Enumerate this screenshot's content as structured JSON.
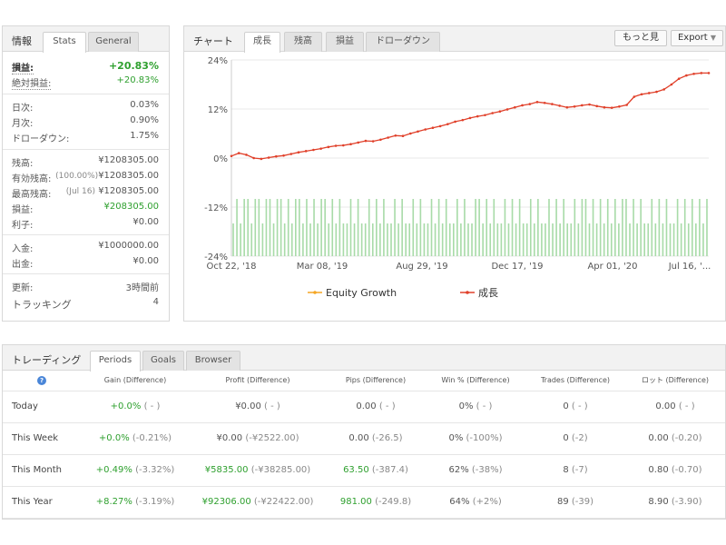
{
  "stats_panel": {
    "title": "情報",
    "tabs": [
      "Stats",
      "General"
    ],
    "gain_label": "損益:",
    "gain_value": "+20.83%",
    "abs_gain_label": "絶対損益:",
    "abs_gain_value": "+20.83%",
    "daily_label": "日次:",
    "daily_value": "0.03%",
    "monthly_label": "月次:",
    "monthly_value": "0.90%",
    "drawdown_label": "ドローダウン:",
    "drawdown_value": "1.75%",
    "balance_label": "残高:",
    "balance_value": "¥1208305.00",
    "equity_label": "有効残高:",
    "equity_note": "(100.00%)",
    "equity_value": "¥1208305.00",
    "highest_label": "最高残高:",
    "highest_note": "(Jul 16)",
    "highest_value": "¥1208305.00",
    "profit_label": "損益:",
    "profit_value": "¥208305.00",
    "interest_label": "利子:",
    "interest_value": "¥0.00",
    "deposits_label": "入金:",
    "deposits_value": "¥1000000.00",
    "withdrawals_label": "出金:",
    "withdrawals_value": "¥0.00",
    "updated_label": "更新:",
    "updated_value": "3時間前",
    "tracking_label": "トラッキング",
    "tracking_value": "4"
  },
  "chart_panel": {
    "title": "チャート",
    "tabs": [
      "成長",
      "残高",
      "損益",
      "ドローダウン"
    ],
    "more_button": "もっと見",
    "export_button": "Export",
    "export_arrow": "▼"
  },
  "chart_data": {
    "type": "line",
    "y_ticks": [
      "24%",
      "12%",
      "0%",
      "-12%",
      "-24%"
    ],
    "ylim": [
      -24,
      24
    ],
    "x_ticks": [
      "Oct 22, '18",
      "Mar 08, '19",
      "Aug 29, '19",
      "Dec 17, '19",
      "Apr 01, '20",
      "Jul 16, '..."
    ],
    "series": [
      {
        "name": "成長",
        "color": "#e0402a",
        "values": [
          0.5,
          1.2,
          0.8,
          0.0,
          -0.2,
          0.1,
          0.4,
          0.6,
          1.0,
          1.4,
          1.7,
          2.0,
          2.3,
          2.7,
          3.0,
          3.1,
          3.4,
          3.8,
          4.2,
          4.1,
          4.5,
          5.0,
          5.5,
          5.4,
          6.0,
          6.5,
          7.0,
          7.4,
          7.8,
          8.3,
          8.9,
          9.3,
          9.8,
          10.2,
          10.5,
          11.0,
          11.4,
          11.9,
          12.4,
          12.9,
          13.2,
          13.7,
          13.5,
          13.2,
          12.8,
          12.4,
          12.6,
          12.9,
          13.1,
          12.7,
          12.4,
          12.3,
          12.6,
          13.0,
          15.0,
          15.6,
          15.9,
          16.2,
          16.8,
          18.0,
          19.4,
          20.2,
          20.6,
          20.8,
          20.8
        ]
      },
      {
        "name": "Equity Growth",
        "color": "#f5a623"
      }
    ],
    "bars": {
      "color": "#a8dba8",
      "values": [
        8,
        14,
        8,
        14,
        14,
        8,
        14,
        14,
        8,
        14,
        14,
        8,
        14,
        14,
        8,
        14,
        8,
        14,
        14,
        8,
        14,
        8,
        14,
        8,
        14,
        14,
        8,
        14,
        8,
        14,
        8,
        8,
        14,
        8,
        14,
        8,
        8,
        14,
        8,
        14,
        8,
        14,
        8,
        8,
        14,
        8,
        14,
        8,
        8,
        14,
        8,
        14,
        8,
        8,
        14,
        8,
        14,
        8,
        14,
        8,
        8,
        14,
        8,
        14,
        8,
        8,
        14,
        14,
        8,
        14,
        8,
        14,
        8,
        8,
        14,
        8,
        14,
        8,
        14,
        8,
        8,
        14,
        8,
        14,
        8,
        8,
        14,
        8,
        14,
        8,
        14,
        8,
        8,
        14,
        8,
        14,
        14,
        8,
        14,
        8,
        14,
        8,
        14,
        8,
        14,
        8,
        14,
        14,
        8,
        14,
        8,
        14,
        8,
        8,
        14,
        8,
        14,
        8,
        14,
        8,
        8,
        14,
        8,
        14,
        8,
        14,
        8,
        14,
        8,
        14
      ]
    },
    "legend": "bottom"
  },
  "trading_panel": {
    "title": "トレーディング",
    "tabs": [
      "Periods",
      "Goals",
      "Browser"
    ],
    "help_icon_text": "?",
    "columns": [
      "Gain (Difference)",
      "Profit (Difference)",
      "Pips (Difference)",
      "Win % (Difference)",
      "Trades (Difference)",
      "ロット (Difference)"
    ],
    "rows": [
      {
        "period": "Today",
        "gain": "+0.0%",
        "gain_d": "( - )",
        "profit": "¥0.00",
        "profit_d": "( - )",
        "pips": "0.00",
        "pips_d": "( - )",
        "win": "0%",
        "win_d": "( - )",
        "trades": "0",
        "trades_d": "( - )",
        "lots": "0.00",
        "lots_d": "( - )"
      },
      {
        "period": "This Week",
        "gain": "+0.0%",
        "gain_d": "(-0.21%)",
        "profit": "¥0.00",
        "profit_d": "(-¥2522.00)",
        "pips": "0.00",
        "pips_d": "(-26.5)",
        "win": "0%",
        "win_d": "(-100%)",
        "trades": "0",
        "trades_d": "(-2)",
        "lots": "0.00",
        "lots_d": "(-0.20)"
      },
      {
        "period": "This Month",
        "gain": "+0.49%",
        "gain_d": "(-3.32%)",
        "profit": "¥5835.00",
        "profit_d": "(-¥38285.00)",
        "pips": "63.50",
        "pips_d": "(-387.4)",
        "win": "62%",
        "win_d": "(-38%)",
        "trades": "8",
        "trades_d": "(-7)",
        "lots": "0.80",
        "lots_d": "(-0.70)"
      },
      {
        "period": "This Year",
        "gain": "+8.27%",
        "gain_d": "(-3.19%)",
        "profit": "¥92306.00",
        "profit_d": "(-¥22422.00)",
        "pips": "981.00",
        "pips_d": "(-249.8)",
        "win": "64%",
        "win_d": "(+2%)",
        "trades": "89",
        "trades_d": "(-39)",
        "lots": "8.90",
        "lots_d": "(-3.90)"
      }
    ]
  }
}
